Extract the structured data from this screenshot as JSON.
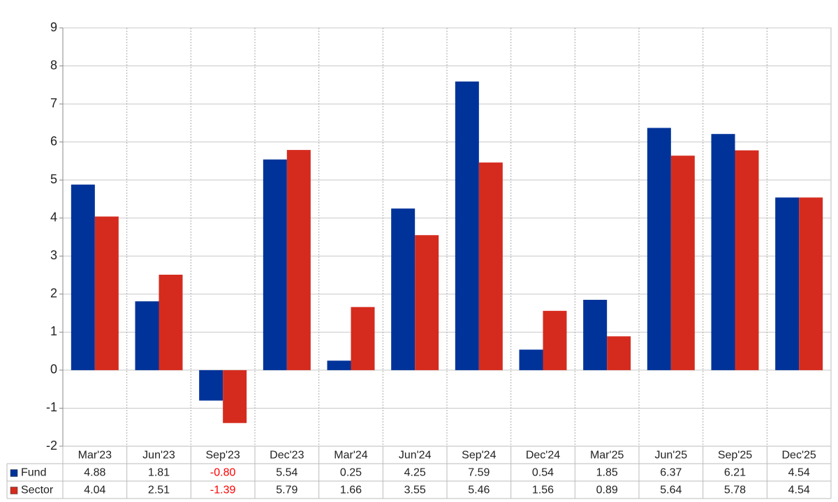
{
  "chart_data": {
    "type": "bar",
    "categories": [
      "Mar'23",
      "Jun'23",
      "Sep'23",
      "Dec'23",
      "Mar'24",
      "Jun'24",
      "Sep'24",
      "Dec'24",
      "Mar'25",
      "Jun'25",
      "Sep'25",
      "Dec'25"
    ],
    "series": [
      {
        "name": "Fund",
        "color": "#003399",
        "values": [
          4.88,
          1.81,
          -0.8,
          5.54,
          0.25,
          4.25,
          7.59,
          0.54,
          1.85,
          6.37,
          6.21,
          4.54
        ],
        "value_labels": [
          "4.88",
          "1.81",
          "-0.80",
          "5.54",
          "0.25",
          "4.25",
          "7.59",
          "0.54",
          "1.85",
          "6.37",
          "6.21",
          "4.54"
        ]
      },
      {
        "name": "Sector",
        "color": "#d52b1e",
        "values": [
          4.04,
          2.51,
          -1.39,
          5.79,
          1.66,
          3.55,
          5.46,
          1.56,
          0.89,
          5.64,
          5.78,
          4.54
        ],
        "value_labels": [
          "4.04",
          "2.51",
          "-1.39",
          "5.79",
          "1.66",
          "3.55",
          "5.46",
          "1.56",
          "0.89",
          "5.64",
          "5.78",
          "4.54"
        ]
      }
    ],
    "ylim": [
      -2,
      9
    ],
    "yticks": [
      -2,
      -1,
      0,
      1,
      2,
      3,
      4,
      5,
      6,
      7,
      8,
      9
    ],
    "grid": true,
    "negative_label_color": "#ff0000"
  }
}
